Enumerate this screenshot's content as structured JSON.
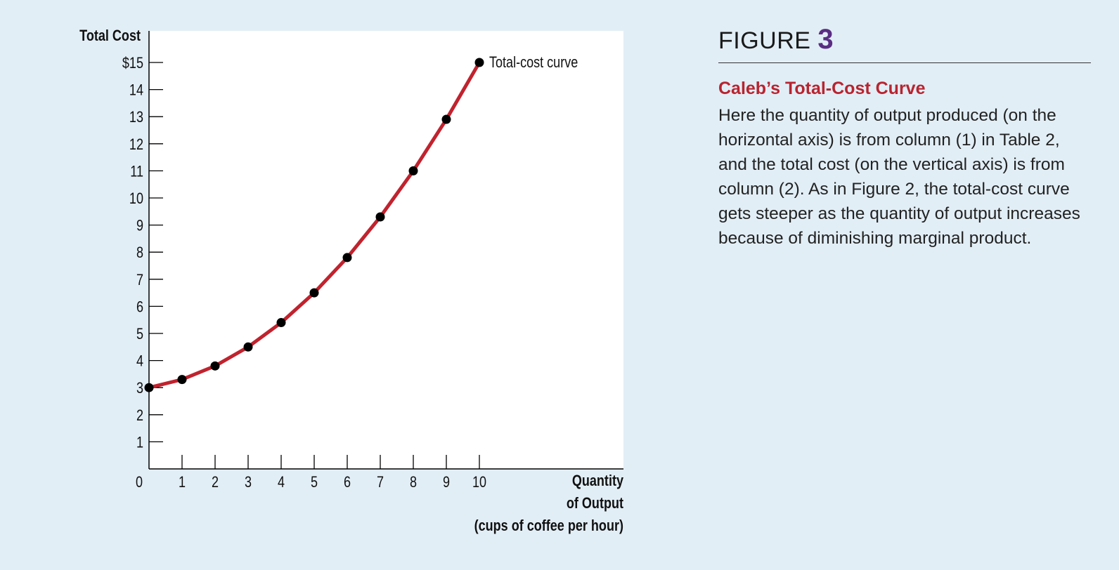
{
  "figure": {
    "label": "FIGURE",
    "number": "3",
    "title": "Caleb’s Total-Cost Curve",
    "caption": "Here the quantity of output produced (on the horizontal axis) is from column (1) in Table 2, and the total cost (on the vertical axis) is from column (2). As in Figure 2, the total-cost curve gets steeper as the quantity of output increases because of diminishing marginal product."
  },
  "colors": {
    "background": "#e2eef6",
    "plot_area": "#ffffff",
    "curve": "#c0232e",
    "points": "#000000",
    "figure_number": "#5a2d82",
    "figure_title": "#b8242f"
  },
  "chart_data": {
    "type": "line",
    "x": [
      0,
      1,
      2,
      3,
      4,
      5,
      6,
      7,
      8,
      9,
      10
    ],
    "series": [
      {
        "name": "Total-cost curve",
        "values": [
          3.0,
          3.3,
          3.8,
          4.5,
          5.4,
          6.5,
          7.8,
          9.3,
          11.0,
          12.9,
          15.0
        ]
      }
    ],
    "annotation": "Total-cost curve",
    "ylabel": "Total Cost",
    "xlabel_lines": [
      "Quantity",
      "of Output",
      "(cups of coffee per hour)"
    ],
    "y_ticks": [
      "$15",
      "14",
      "13",
      "12",
      "11",
      "10",
      "9",
      "8",
      "7",
      "6",
      "5",
      "4",
      "3",
      "2",
      "1"
    ],
    "y_tick_values": [
      15,
      14,
      13,
      12,
      11,
      10,
      9,
      8,
      7,
      6,
      5,
      4,
      3,
      2,
      1
    ],
    "x_ticks": [
      "0",
      "1",
      "2",
      "3",
      "4",
      "5",
      "6",
      "7",
      "8",
      "9",
      "10"
    ],
    "x_tick_values": [
      0,
      1,
      2,
      3,
      4,
      5,
      6,
      7,
      8,
      9,
      10
    ],
    "xlim": [
      0,
      14.4
    ],
    "ylim": [
      0,
      16.2
    ],
    "grid": false,
    "legend": "none"
  }
}
